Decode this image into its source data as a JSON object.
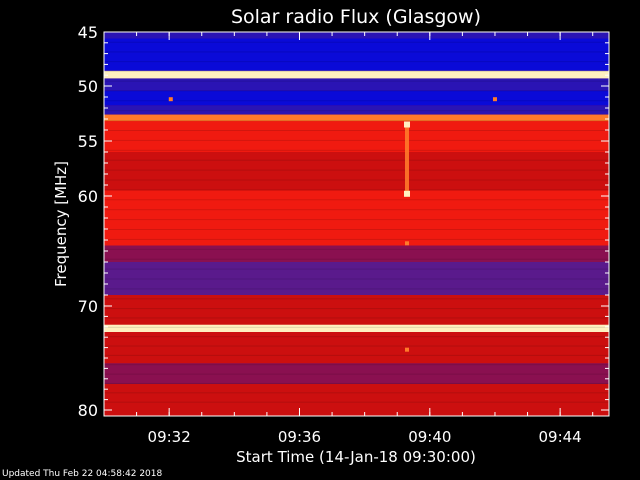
{
  "chart_data": {
    "type": "heatmap",
    "title": "Solar radio Flux (Glasgow)",
    "xlabel": "Start Time (14-Jan-18 09:30:00)",
    "ylabel": "Frequency [MHz]",
    "x_unit": "minutes after 09:30",
    "xlim": [
      0,
      15.5
    ],
    "ylim": [
      45,
      80
    ],
    "y_axis": "inverted",
    "x_ticks": [
      {
        "value": 2,
        "label": "09:32"
      },
      {
        "value": 6,
        "label": "09:36"
      },
      {
        "value": 10,
        "label": "09:40"
      },
      {
        "value": 14,
        "label": "09:44"
      }
    ],
    "y_ticks": [
      {
        "value": 45,
        "label": "45"
      },
      {
        "value": 50,
        "label": "50"
      },
      {
        "value": 55,
        "label": "55"
      },
      {
        "value": 60,
        "label": "60"
      },
      {
        "value": 70,
        "label": "70"
      },
      {
        "value": 80,
        "label": "80"
      }
    ],
    "frequency_bands_mhz": [
      {
        "from": 45.0,
        "to": 45.6,
        "level": "low"
      },
      {
        "from": 45.6,
        "to": 48.6,
        "level": "very-low"
      },
      {
        "from": 48.6,
        "to": 49.3,
        "level": "saturated"
      },
      {
        "from": 49.3,
        "to": 50.4,
        "level": "low"
      },
      {
        "from": 50.4,
        "to": 51.8,
        "level": "very-low"
      },
      {
        "from": 51.8,
        "to": 52.6,
        "level": "low"
      },
      {
        "from": 52.6,
        "to": 53.2,
        "level": "high"
      },
      {
        "from": 53.2,
        "to": 56.0,
        "level": "medium-high"
      },
      {
        "from": 56.0,
        "to": 59.5,
        "level": "medium"
      },
      {
        "from": 59.5,
        "to": 64.5,
        "level": "medium-high"
      },
      {
        "from": 64.5,
        "to": 66.0,
        "level": "medium-low"
      },
      {
        "from": 66.0,
        "to": 69.0,
        "level": "low-medium"
      },
      {
        "from": 69.0,
        "to": 71.8,
        "level": "medium"
      },
      {
        "from": 71.8,
        "to": 72.5,
        "level": "saturated"
      },
      {
        "from": 72.5,
        "to": 75.5,
        "level": "medium"
      },
      {
        "from": 75.5,
        "to": 77.5,
        "level": "medium-low"
      },
      {
        "from": 77.5,
        "to": 80.0,
        "level": "medium"
      }
    ],
    "features": [
      {
        "kind": "vertical-burst",
        "time": 9.3,
        "freq_from": 53.5,
        "freq_to": 59.8
      },
      {
        "kind": "spot",
        "time": 2.05,
        "freq": 51.2
      },
      {
        "kind": "spot",
        "time": 12.0,
        "freq": 51.2
      },
      {
        "kind": "spot",
        "time": 9.3,
        "freq": 64.3
      },
      {
        "kind": "spot",
        "time": 9.3,
        "freq": 74.2
      }
    ],
    "colors": {
      "background": "#000000",
      "text": "#ffffff",
      "very-low": "#0a0ad8",
      "low": "#2a14b4",
      "low-medium": "#5a1a8c",
      "medium-low": "#8a1050",
      "medium": "#cc0f0f",
      "medium-high": "#f01a10",
      "high": "#ff7a2a",
      "saturated": "#fff0c0"
    }
  },
  "footer": {
    "updated": "Updated Thu Feb 22 04:58:42 2018"
  }
}
